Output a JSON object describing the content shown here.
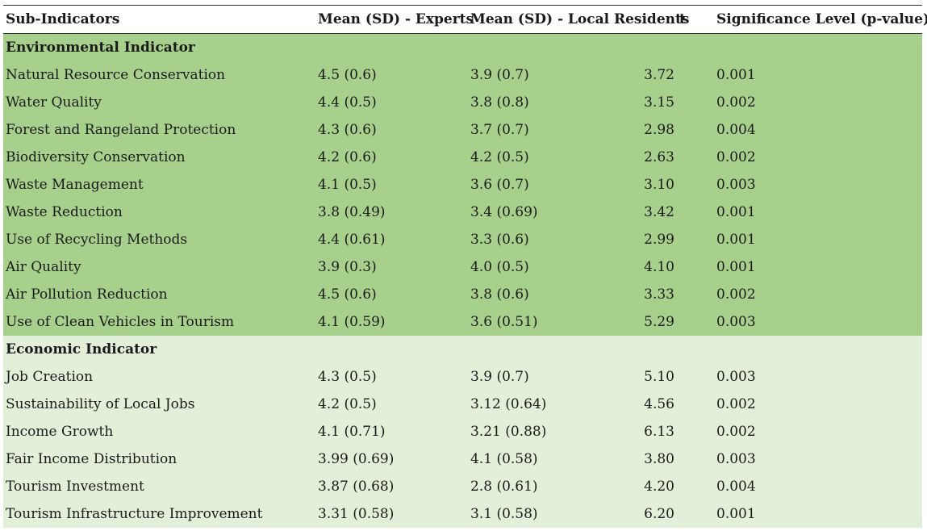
{
  "header": {
    "col0": "Sub-Indicators",
    "col1": "Mean (SD) - Experts",
    "col2": "Mean (SD) - Local Residents",
    "col3": "t",
    "col4": "Significance Level (p-value)"
  },
  "colors": {
    "environmental_bg": "#a8d08d",
    "economic_bg": "#e2efd9"
  },
  "groups": [
    {
      "title": "Environmental Indicator",
      "rows": [
        [
          "Natural Resource Conservation",
          "4.5 (0.6)",
          "3.9 (0.7)",
          "3.72",
          "0.001"
        ],
        [
          "Water Quality",
          "4.4 (0.5)",
          "3.8 (0.8)",
          "3.15",
          "0.002"
        ],
        [
          "Forest and Rangeland Protection",
          "4.3 (0.6)",
          "3.7 (0.7)",
          "2.98",
          "0.004"
        ],
        [
          "Biodiversity Conservation",
          "4.2 (0.6)",
          "4.2 (0.5)",
          "2.63",
          "0.002"
        ],
        [
          "Waste Management",
          "4.1 (0.5)",
          "3.6 (0.7)",
          "3.10",
          "0.003"
        ],
        [
          "Waste Reduction",
          "3.8 (0.49)",
          "3.4 (0.69)",
          "3.42",
          "0.001"
        ],
        [
          "Use of Recycling Methods",
          "4.4 (0.61)",
          "3.3 (0.6)",
          "2.99",
          "0.001"
        ],
        [
          "Air Quality",
          "3.9 (0.3)",
          "4.0 (0.5)",
          "4.10",
          "0.001"
        ],
        [
          "Air Pollution Reduction",
          "4.5 (0.6)",
          "3.8 (0.6)",
          "3.33",
          "0.002"
        ],
        [
          "Use of Clean Vehicles in Tourism",
          "4.1 (0.59)",
          "3.6 (0.51)",
          "5.29",
          "0.003"
        ]
      ]
    },
    {
      "title": "Economic Indicator",
      "rows": [
        [
          "Job Creation",
          "4.3 (0.5)",
          "3.9 (0.7)",
          "5.10",
          "0.003"
        ],
        [
          "Sustainability of Local Jobs",
          "4.2 (0.5)",
          "3.12 (0.64)",
          "4.56",
          "0.002"
        ],
        [
          "Income Growth",
          "4.1 (0.71)",
          "3.21 (0.88)",
          "6.13",
          "0.002"
        ],
        [
          "Fair Income Distribution",
          "3.99 (0.69)",
          "4.1 (0.58)",
          "3.80",
          "0.003"
        ],
        [
          "Tourism Investment",
          "3.87 (0.68)",
          "2.8 (0.61)",
          "4.20",
          "0.004"
        ],
        [
          "Tourism Infrastructure Improvement",
          "3.31 (0.58)",
          "3.1 (0.58)",
          "6.20",
          "0.001"
        ]
      ]
    }
  ]
}
